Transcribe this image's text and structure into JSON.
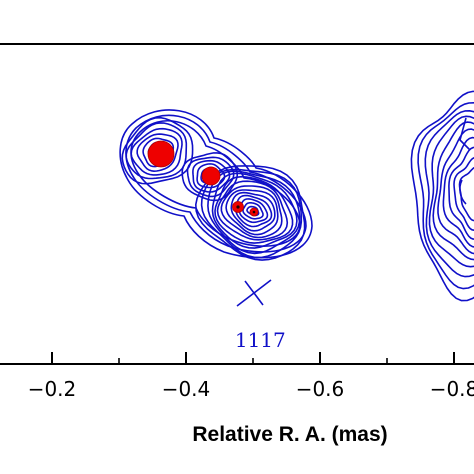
{
  "chart_data": {
    "type": "contour",
    "xlabel": "Relative R. A. (mas)",
    "ylabel": "",
    "title": "",
    "x_ticks": [
      {
        "value": -0.2,
        "label": "−0.2"
      },
      {
        "value": -0.4,
        "label": "−0.4"
      },
      {
        "value": -0.6,
        "label": "−0.6"
      },
      {
        "value": -0.8,
        "label": "−0.8"
      }
    ],
    "x_visible_range": [
      -0.12,
      -0.82
    ],
    "x_reversed": true,
    "grid": false,
    "annotations": [
      {
        "text": "1117",
        "x": -0.49
      }
    ],
    "reference_marker": {
      "symbol": "cross",
      "x": -0.5
    },
    "components": [
      {
        "name": "",
        "x": -0.37,
        "relative_size": 1.0
      },
      {
        "name": "",
        "x": -0.44,
        "relative_size": 0.6
      },
      {
        "name": "",
        "x": -0.48,
        "relative_size": 0.35
      },
      {
        "name": "",
        "x": -0.5,
        "relative_size": 0.25
      }
    ],
    "colors": {
      "contours": "#1010c8",
      "components": "#ee0000",
      "annotation": "#1010c8",
      "axes": "#000000"
    }
  }
}
